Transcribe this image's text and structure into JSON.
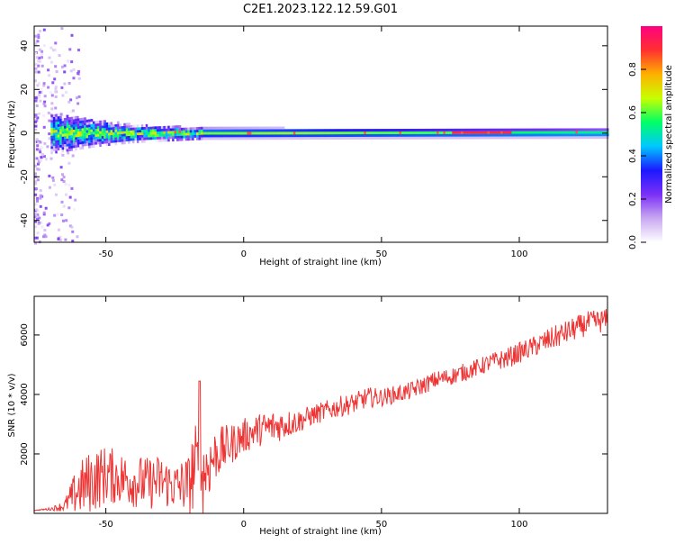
{
  "title": "C2E1.2023.122.12.59.G01",
  "spectrogram": {
    "type": "heatmap",
    "xlabel": "Height of straight line (km)",
    "ylabel": "Frequency (Hz)",
    "xlim": [
      -76,
      132
    ],
    "ylim": [
      -50,
      49
    ],
    "xticks": [
      -50,
      0,
      50,
      100
    ],
    "yticks": [
      -40,
      -20,
      0,
      20,
      40
    ],
    "colorbar": {
      "label": "Normalized spectral amplitude",
      "range": [
        0,
        1
      ],
      "ticks": [
        "0.0",
        "0.2",
        "0.4",
        "0.6",
        "0.8"
      ],
      "colors": [
        "#ffffff",
        "#c8a8f0",
        "#7b2ff7",
        "#1a1aff",
        "#00c8ff",
        "#00ff66",
        "#c8ff00",
        "#ffb000",
        "#ff3030",
        "#ff0080"
      ]
    },
    "band_center_hz": 0,
    "band_halfwidth_hz": [
      {
        "x": -70,
        "w": 9
      },
      {
        "x": -55,
        "w": 6
      },
      {
        "x": -40,
        "w": 4
      },
      {
        "x": -15,
        "w": 2.5
      },
      {
        "x": 130,
        "w": 2
      }
    ],
    "peak_segments": [
      {
        "x0": 75,
        "x1": 97,
        "value": 0.9
      }
    ]
  },
  "snr": {
    "type": "line",
    "xlabel": "Height of straight line (km)",
    "ylabel": "SNR (10 * v/v)",
    "xlim": [
      -76,
      132
    ],
    "ylim": [
      0,
      7300
    ],
    "xticks": [
      -50,
      0,
      50,
      100
    ],
    "yticks": [
      2000,
      4000,
      6000
    ],
    "color": "#ee3333",
    "x": [
      -76,
      -70,
      -65,
      -60,
      -55,
      -50,
      -45,
      -40,
      -35,
      -30,
      -25,
      -20,
      -18,
      -15,
      -10,
      -5,
      0,
      5,
      10,
      15,
      20,
      25,
      30,
      35,
      40,
      45,
      50,
      55,
      60,
      65,
      70,
      75,
      80,
      85,
      90,
      95,
      100,
      105,
      110,
      115,
      120,
      125,
      132
    ],
    "y": [
      100,
      150,
      250,
      800,
      1100,
      1300,
      1200,
      1100,
      1000,
      1100,
      900,
      1000,
      1500,
      1300,
      2000,
      2300,
      2600,
      2800,
      2900,
      3000,
      3100,
      3300,
      3450,
      3600,
      3700,
      3900,
      3900,
      4000,
      4100,
      4300,
      4500,
      4600,
      4750,
      4900,
      5100,
      5200,
      5400,
      5600,
      5800,
      6000,
      6200,
      6400,
      6500
    ],
    "noise_amplitude": [
      0,
      50,
      200,
      900,
      1100,
      1000,
      900,
      900,
      900,
      900,
      800,
      1000,
      1600,
      1400,
      900,
      700,
      600,
      550,
      600,
      500,
      400,
      350,
      350,
      350,
      350,
      350,
      300,
      300,
      300,
      300,
      300,
      300,
      300,
      300,
      300,
      350,
      350,
      350,
      400,
      400,
      400,
      400,
      400
    ]
  }
}
